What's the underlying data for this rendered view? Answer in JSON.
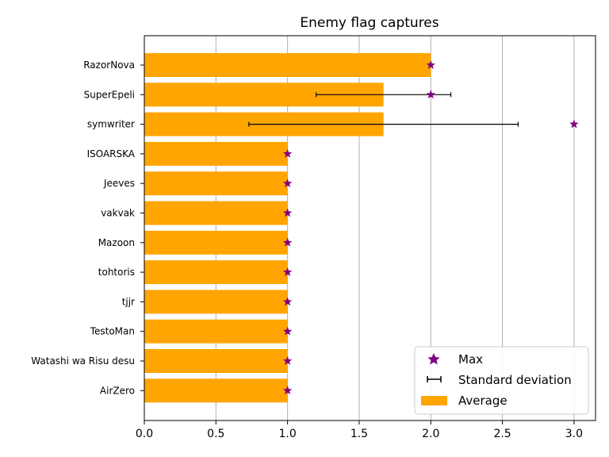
{
  "chart_data": {
    "type": "bar",
    "orientation": "horizontal",
    "title": "Enemy flag captures",
    "xlabel": "",
    "ylabel": "",
    "xlim": [
      0,
      3.15
    ],
    "xticks": [
      "0.0",
      "0.5",
      "1.0",
      "1.5",
      "2.0",
      "2.5",
      "3.0"
    ],
    "grid": "x",
    "legend_position": "lower-right",
    "categories": [
      "RazorNova",
      "SuperEpeli",
      "symwriter",
      "ISOARSKA",
      "Jeeves",
      "vakvak",
      "Mazoon",
      "tohtoris",
      "tjjr",
      "TestoMan",
      "Watashi wa Risu desu",
      "AirZero"
    ],
    "series": [
      {
        "name": "Average",
        "type": "bar",
        "color": "#ffa500",
        "values": [
          2.0,
          1.67,
          1.67,
          1.0,
          1.0,
          1.0,
          1.0,
          1.0,
          1.0,
          1.0,
          1.0,
          1.0
        ]
      },
      {
        "name": "Max",
        "type": "marker",
        "marker": "star",
        "color": "#800080",
        "values": [
          2,
          2,
          3,
          1,
          1,
          1,
          1,
          1,
          1,
          1,
          1,
          1
        ]
      },
      {
        "name": "Standard deviation",
        "type": "errorbar",
        "color": "#000000",
        "values": [
          0,
          0.47,
          0.94,
          0,
          0,
          0,
          0,
          0,
          0,
          0,
          0,
          0
        ]
      }
    ],
    "legend": [
      "Max",
      "Standard deviation",
      "Average"
    ]
  }
}
